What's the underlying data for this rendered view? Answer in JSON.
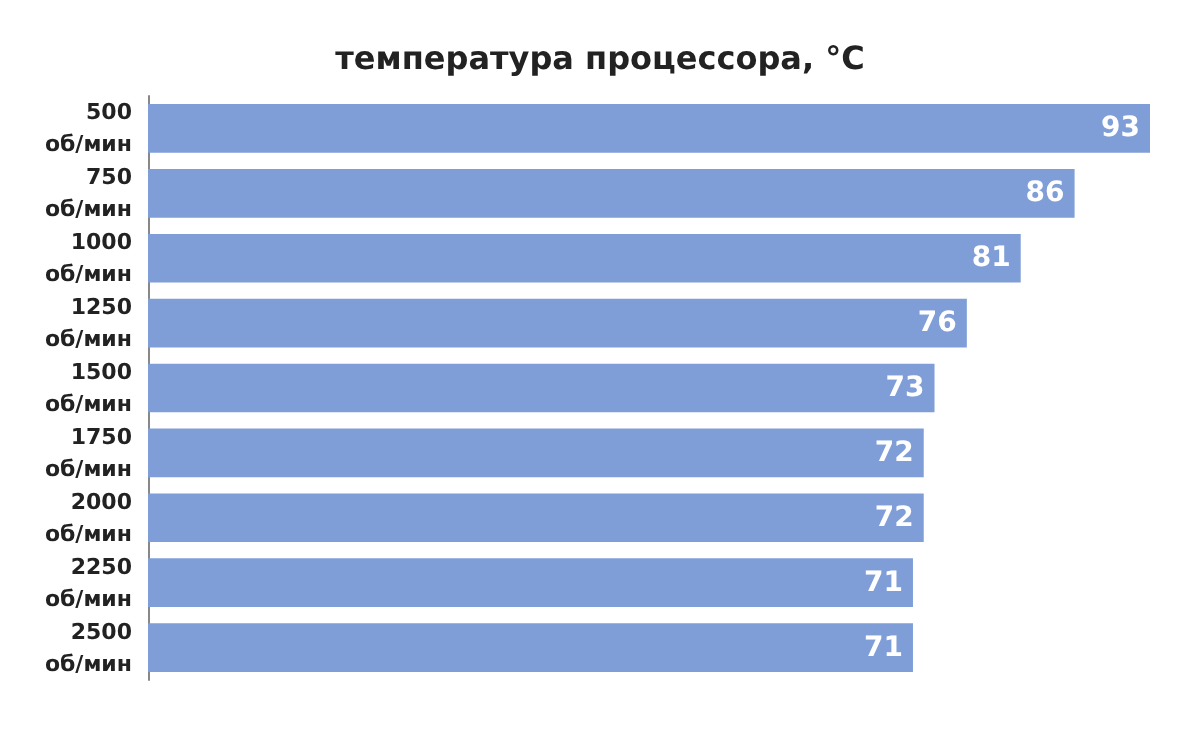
{
  "chart_data": {
    "type": "bar",
    "orientation": "horizontal",
    "title": "температура процессора, °C",
    "categories": [
      "500 об/мин",
      "750 об/мин",
      "1000 об/мин",
      "1250 об/мин",
      "1500 об/мин",
      "1750 об/мин",
      "2000 об/мин",
      "2250 об/мин",
      "2500 об/мин"
    ],
    "values": [
      93,
      86,
      81,
      76,
      73,
      72,
      72,
      71,
      71
    ],
    "color": "#7f9ed8",
    "data_labels": true
  }
}
